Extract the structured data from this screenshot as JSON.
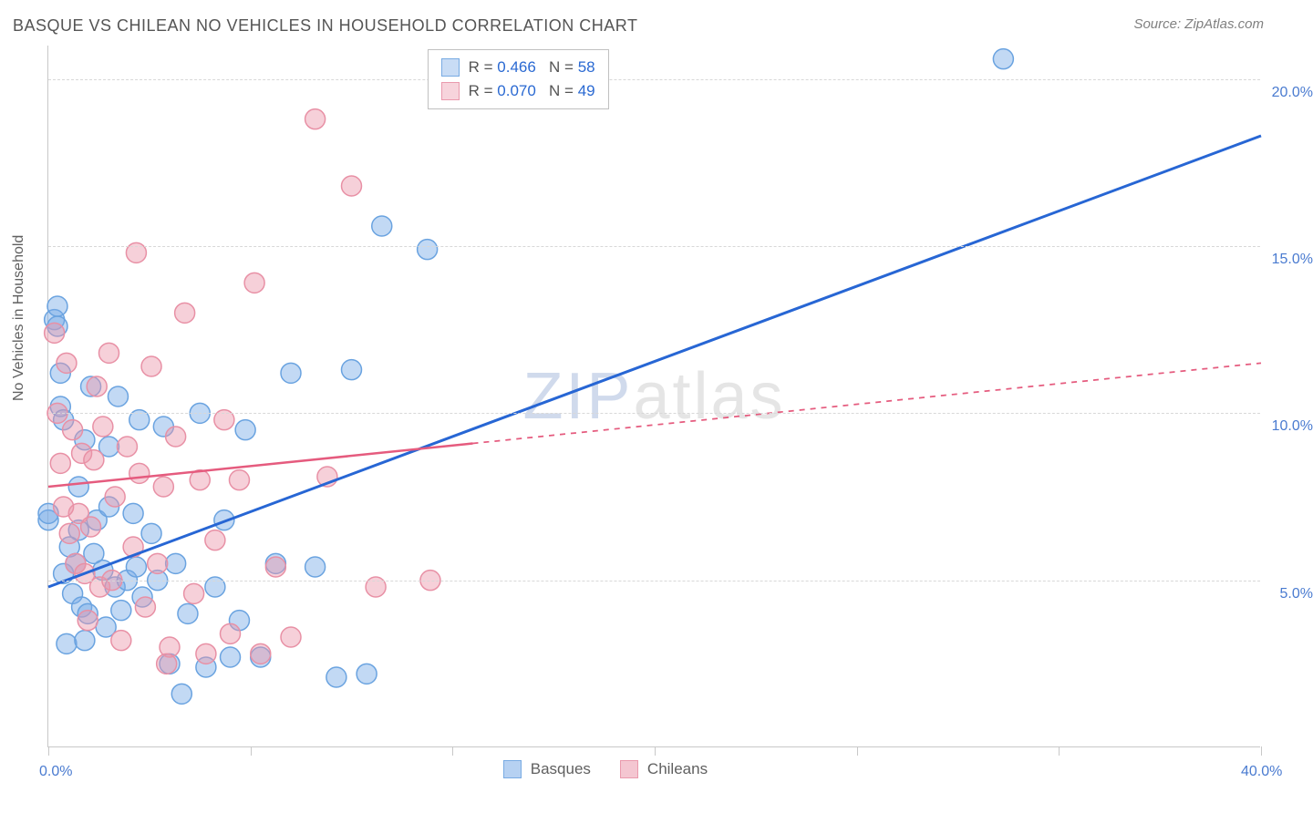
{
  "title": "BASQUE VS CHILEAN NO VEHICLES IN HOUSEHOLD CORRELATION CHART",
  "source": "Source: ZipAtlas.com",
  "ylabel": "No Vehicles in Household",
  "watermark_z": "ZIP",
  "watermark_rest": "atlas",
  "chart": {
    "type": "scatter-with-regression",
    "xlim": [
      0,
      40
    ],
    "ylim": [
      0,
      21
    ],
    "x_ticks": [
      0,
      6.67,
      13.33,
      20,
      26.67,
      33.33,
      40
    ],
    "x_tick_labels": {
      "0": "0.0%",
      "40": "40.0%"
    },
    "y_gridlines": [
      5,
      10,
      15,
      20
    ],
    "y_tick_labels": {
      "5": "5.0%",
      "10": "10.0%",
      "15": "15.0%",
      "20": "20.0%"
    },
    "background_color": "#ffffff",
    "grid_color": "#d8d8d8",
    "axis_color": "#c8c8c8",
    "axis_label_color": "#4a7bd0",
    "series": [
      {
        "name": "Basques",
        "color_fill": "rgba(120,170,230,0.45)",
        "color_stroke": "#6aa3e0",
        "marker_radius": 11,
        "regression": {
          "x1": 0,
          "y1": 4.8,
          "x2": 40,
          "y2": 18.3,
          "solid_until_x": 40,
          "color": "#2766d4",
          "width": 3
        },
        "R": "0.466",
        "N": "58",
        "points": [
          [
            0,
            6.8
          ],
          [
            0,
            7.0
          ],
          [
            0.2,
            12.8
          ],
          [
            0.3,
            12.6
          ],
          [
            0.4,
            10.2
          ],
          [
            0.4,
            11.2
          ],
          [
            0.5,
            9.8
          ],
          [
            0.5,
            5.2
          ],
          [
            0.6,
            3.1
          ],
          [
            0.7,
            6.0
          ],
          [
            0.8,
            4.6
          ],
          [
            0.9,
            5.5
          ],
          [
            1.0,
            6.5
          ],
          [
            1.0,
            7.8
          ],
          [
            1.1,
            4.2
          ],
          [
            1.2,
            9.2
          ],
          [
            1.3,
            4.0
          ],
          [
            1.4,
            10.8
          ],
          [
            1.5,
            5.8
          ],
          [
            1.6,
            6.8
          ],
          [
            1.8,
            5.3
          ],
          [
            1.9,
            3.6
          ],
          [
            2.0,
            9.0
          ],
          [
            2.0,
            7.2
          ],
          [
            2.2,
            4.8
          ],
          [
            2.3,
            10.5
          ],
          [
            2.4,
            4.1
          ],
          [
            2.6,
            5.0
          ],
          [
            2.8,
            7.0
          ],
          [
            2.9,
            5.4
          ],
          [
            3.0,
            9.8
          ],
          [
            3.1,
            4.5
          ],
          [
            3.4,
            6.4
          ],
          [
            3.6,
            5.0
          ],
          [
            3.8,
            9.6
          ],
          [
            4.0,
            2.5
          ],
          [
            4.2,
            5.5
          ],
          [
            4.4,
            1.6
          ],
          [
            4.6,
            4.0
          ],
          [
            5.0,
            10.0
          ],
          [
            5.2,
            2.4
          ],
          [
            5.5,
            4.8
          ],
          [
            5.8,
            6.8
          ],
          [
            6.0,
            2.7
          ],
          [
            6.3,
            3.8
          ],
          [
            6.5,
            9.5
          ],
          [
            7.0,
            2.7
          ],
          [
            7.5,
            5.5
          ],
          [
            8.0,
            11.2
          ],
          [
            8.8,
            5.4
          ],
          [
            9.5,
            2.1
          ],
          [
            10.0,
            11.3
          ],
          [
            10.5,
            2.2
          ],
          [
            11.0,
            15.6
          ],
          [
            12.5,
            14.9
          ],
          [
            31.5,
            20.6
          ],
          [
            0.3,
            13.2
          ],
          [
            1.2,
            3.2
          ]
        ]
      },
      {
        "name": "Chileans",
        "color_fill": "rgba(235,150,170,0.45)",
        "color_stroke": "#e890a5",
        "marker_radius": 11,
        "regression": {
          "x1": 0,
          "y1": 7.8,
          "x2": 40,
          "y2": 11.5,
          "solid_until_x": 14,
          "color": "#e55b7e",
          "width": 2.5,
          "dash": "6 6"
        },
        "R": "0.070",
        "N": "49",
        "points": [
          [
            0.2,
            12.4
          ],
          [
            0.3,
            10.0
          ],
          [
            0.4,
            8.5
          ],
          [
            0.6,
            11.5
          ],
          [
            0.7,
            6.4
          ],
          [
            0.8,
            9.5
          ],
          [
            0.9,
            5.5
          ],
          [
            1.0,
            7.0
          ],
          [
            1.1,
            8.8
          ],
          [
            1.2,
            5.2
          ],
          [
            1.3,
            3.8
          ],
          [
            1.5,
            8.6
          ],
          [
            1.6,
            10.8
          ],
          [
            1.7,
            4.8
          ],
          [
            1.8,
            9.6
          ],
          [
            2.0,
            11.8
          ],
          [
            2.1,
            5.0
          ],
          [
            2.2,
            7.5
          ],
          [
            2.4,
            3.2
          ],
          [
            2.6,
            9.0
          ],
          [
            2.8,
            6.0
          ],
          [
            2.9,
            14.8
          ],
          [
            3.0,
            8.2
          ],
          [
            3.2,
            4.2
          ],
          [
            3.4,
            11.4
          ],
          [
            3.6,
            5.5
          ],
          [
            3.8,
            7.8
          ],
          [
            4.0,
            3.0
          ],
          [
            4.2,
            9.3
          ],
          [
            4.5,
            13.0
          ],
          [
            4.8,
            4.6
          ],
          [
            5.0,
            8.0
          ],
          [
            5.2,
            2.8
          ],
          [
            5.5,
            6.2
          ],
          [
            5.8,
            9.8
          ],
          [
            6.0,
            3.4
          ],
          [
            6.3,
            8.0
          ],
          [
            6.8,
            13.9
          ],
          [
            7.0,
            2.8
          ],
          [
            7.5,
            5.4
          ],
          [
            8.0,
            3.3
          ],
          [
            8.8,
            18.8
          ],
          [
            9.2,
            8.1
          ],
          [
            10.0,
            16.8
          ],
          [
            10.8,
            4.8
          ],
          [
            12.6,
            5.0
          ],
          [
            3.9,
            2.5
          ],
          [
            1.4,
            6.6
          ],
          [
            0.5,
            7.2
          ]
        ]
      }
    ],
    "legend_stats": {
      "label_R": "R =",
      "label_N": "N ="
    },
    "legend_bottom": [
      {
        "label": "Basques",
        "fill": "rgba(120,170,230,0.6)",
        "stroke": "#6aa3e0"
      },
      {
        "label": "Chileans",
        "fill": "rgba(235,150,170,0.6)",
        "stroke": "#e890a5"
      }
    ]
  }
}
